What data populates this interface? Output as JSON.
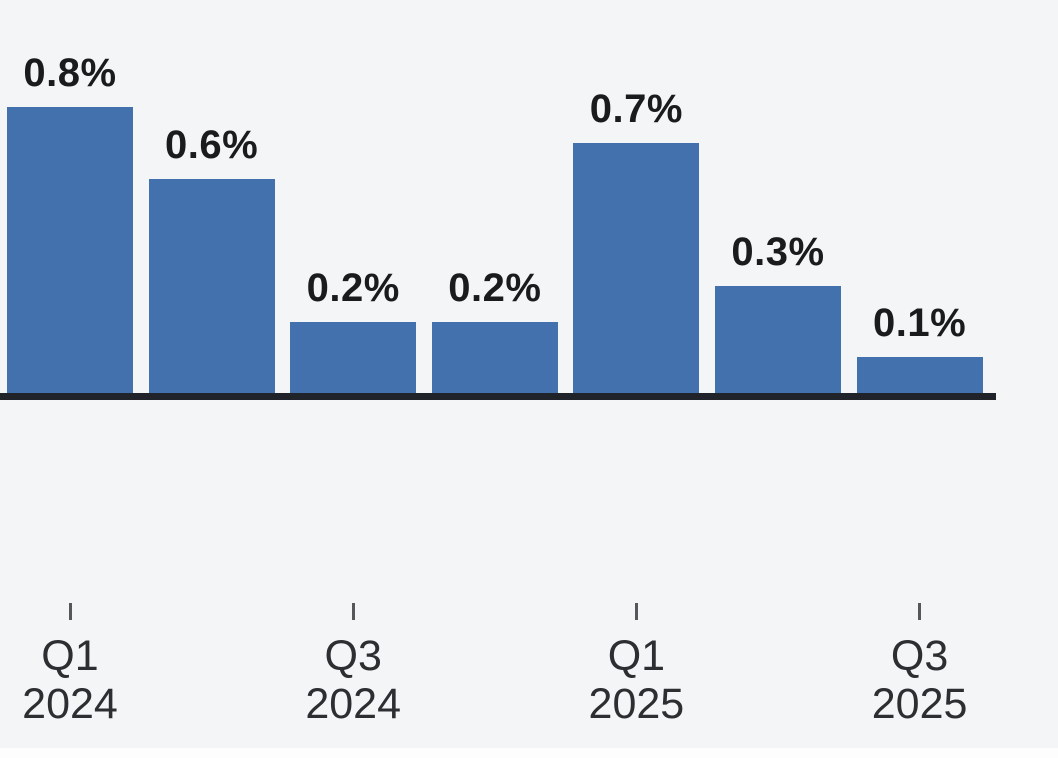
{
  "chart_data": {
    "type": "bar",
    "title": "",
    "unit": "%",
    "bars": [
      {
        "value": 0.8,
        "label": "0.8%"
      },
      {
        "value": 0.6,
        "label": "0.6%"
      },
      {
        "value": 0.2,
        "label": "0.2%"
      },
      {
        "value": 0.2,
        "label": "0.2%"
      },
      {
        "value": 0.7,
        "label": "0.7%"
      },
      {
        "value": 0.3,
        "label": "0.3%"
      },
      {
        "value": 0.1,
        "label": "0.1%"
      }
    ],
    "x_axis_ticks": [
      {
        "bar_index": 0,
        "lines": [
          "Q1",
          "2024"
        ]
      },
      {
        "bar_index": 2,
        "lines": [
          "Q3",
          "2024"
        ]
      },
      {
        "bar_index": 4,
        "lines": [
          "Q1",
          "2025"
        ]
      },
      {
        "bar_index": 6,
        "lines": [
          "Q3",
          "2025"
        ]
      }
    ],
    "ylim": [
      0,
      0.9
    ],
    "grid": false,
    "legend": null,
    "xlabel": "",
    "ylabel": "",
    "colors": {
      "bar": "#4271ad",
      "axis_line": "#20242a",
      "value_label": "#1a1b1d",
      "tick": "#55575b",
      "tick_label": "#2c2e31",
      "background": "#f4f5f6",
      "bottom_strip": "#fdfdfe"
    }
  }
}
